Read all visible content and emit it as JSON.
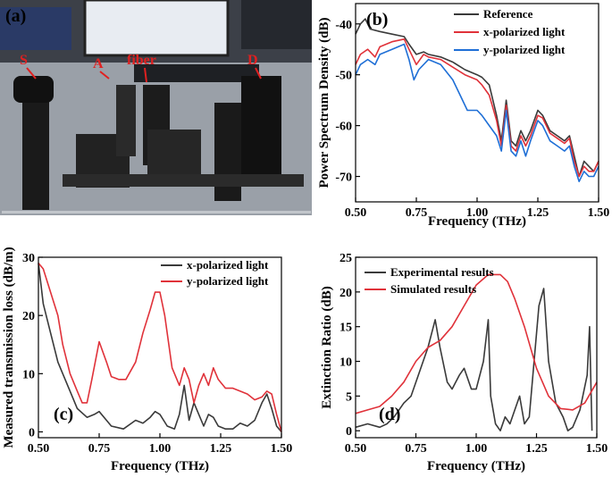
{
  "photo": {
    "panel_label": "(a)",
    "annotations": [
      "S",
      "A",
      "fiber",
      "D"
    ]
  },
  "colors": {
    "black": "#3a3a3a",
    "red": "#e0323a",
    "blue": "#1f6fd6"
  },
  "chart_data": [
    {
      "type": "line",
      "panel_label": "(b)",
      "xlabel": "Frequency (THz)",
      "ylabel": "Power Spectrum Density (dB)",
      "xlim": [
        0.5,
        1.5
      ],
      "ylim": [
        -75,
        -36
      ],
      "xticks": [
        0.5,
        0.75,
        1.0,
        1.25,
        1.5
      ],
      "xtick_labels": [
        "0.50",
        "0.75",
        "1.00",
        "1.25",
        "1.50"
      ],
      "yticks": [
        -40,
        -50,
        -60,
        -70
      ],
      "ytick_labels": [
        "-40",
        "-50",
        "-60",
        "-70"
      ],
      "series": [
        {
          "name": "Reference",
          "color": "#3a3a3a",
          "x": [
            0.5,
            0.52,
            0.54,
            0.56,
            0.6,
            0.65,
            0.7,
            0.72,
            0.75,
            0.78,
            0.8,
            0.85,
            0.9,
            0.95,
            1.0,
            1.02,
            1.05,
            1.08,
            1.1,
            1.12,
            1.14,
            1.16,
            1.18,
            1.2,
            1.22,
            1.25,
            1.27,
            1.3,
            1.33,
            1.36,
            1.38,
            1.4,
            1.42,
            1.44,
            1.46,
            1.48,
            1.5
          ],
          "y": [
            -42,
            -40,
            -39,
            -41,
            -41.5,
            -42,
            -42.5,
            -44,
            -46,
            -45.5,
            -46,
            -46.5,
            -47.5,
            -49,
            -50,
            -50.5,
            -52,
            -58,
            -63,
            -55,
            -63,
            -64,
            -61,
            -63,
            -61,
            -57,
            -58,
            -61,
            -62,
            -63,
            -62,
            -66,
            -70,
            -67,
            -68,
            -69,
            -67
          ]
        },
        {
          "name": "x-polarized light",
          "color": "#e0323a",
          "x": [
            0.5,
            0.52,
            0.55,
            0.58,
            0.6,
            0.65,
            0.7,
            0.72,
            0.75,
            0.78,
            0.8,
            0.85,
            0.9,
            0.95,
            1.0,
            1.02,
            1.05,
            1.08,
            1.1,
            1.12,
            1.14,
            1.16,
            1.18,
            1.2,
            1.22,
            1.25,
            1.27,
            1.3,
            1.33,
            1.36,
            1.38,
            1.4,
            1.42,
            1.44,
            1.46,
            1.48,
            1.5
          ],
          "y": [
            -48,
            -46,
            -45,
            -46.5,
            -44.5,
            -43.5,
            -43,
            -45,
            -48,
            -46,
            -46.5,
            -47,
            -48.5,
            -50,
            -51,
            -52,
            -54,
            -59,
            -64,
            -56,
            -64,
            -65,
            -62,
            -64,
            -62,
            -58,
            -58.5,
            -61.5,
            -62.5,
            -63.5,
            -62.5,
            -67,
            -70,
            -68,
            -69,
            -69,
            -67
          ]
        },
        {
          "name": "y-polarized light",
          "color": "#1f6fd6",
          "x": [
            0.5,
            0.52,
            0.55,
            0.58,
            0.6,
            0.65,
            0.7,
            0.72,
            0.74,
            0.76,
            0.8,
            0.85,
            0.9,
            0.93,
            0.96,
            1.0,
            1.02,
            1.05,
            1.08,
            1.1,
            1.12,
            1.14,
            1.16,
            1.18,
            1.2,
            1.22,
            1.25,
            1.27,
            1.3,
            1.33,
            1.36,
            1.38,
            1.4,
            1.42,
            1.44,
            1.46,
            1.48,
            1.5
          ],
          "y": [
            -50,
            -48,
            -47,
            -48,
            -46,
            -45,
            -44,
            -47,
            -51,
            -49,
            -47,
            -48,
            -51,
            -54,
            -57,
            -57,
            -58,
            -60,
            -62,
            -65,
            -57,
            -65,
            -66,
            -63,
            -66,
            -63,
            -59,
            -60,
            -63,
            -64,
            -65,
            -64,
            -68,
            -71,
            -69,
            -70,
            -70,
            -68
          ]
        }
      ]
    },
    {
      "type": "line",
      "panel_label": "(c)",
      "xlabel": "Frequency (THz)",
      "ylabel": "Measured transmission loss (dB/m)",
      "xlim": [
        0.5,
        1.5
      ],
      "ylim": [
        -1,
        30
      ],
      "xticks": [
        0.5,
        0.75,
        1.0,
        1.25,
        1.5
      ],
      "xtick_labels": [
        "0.50",
        "0.75",
        "1.00",
        "1.25",
        "1.50"
      ],
      "yticks": [
        0,
        10,
        20,
        30
      ],
      "ytick_labels": [
        "0",
        "10",
        "20",
        "30"
      ],
      "series": [
        {
          "name": "x-polarized light",
          "color": "#3a3a3a",
          "x": [
            0.5,
            0.52,
            0.55,
            0.58,
            0.6,
            0.63,
            0.66,
            0.7,
            0.73,
            0.75,
            0.78,
            0.8,
            0.85,
            0.9,
            0.93,
            0.96,
            0.98,
            1.0,
            1.03,
            1.06,
            1.08,
            1.1,
            1.12,
            1.14,
            1.16,
            1.18,
            1.2,
            1.22,
            1.24,
            1.27,
            1.3,
            1.33,
            1.36,
            1.39,
            1.42,
            1.44,
            1.46,
            1.48,
            1.5
          ],
          "y": [
            29,
            22,
            17,
            12,
            10,
            7,
            4,
            2.5,
            3,
            3.5,
            2,
            1,
            0.5,
            2,
            1.5,
            2.5,
            3.5,
            3,
            1,
            0.5,
            3,
            8,
            2,
            5,
            3,
            1,
            3,
            2.5,
            1,
            0.5,
            0.5,
            1.5,
            1,
            2,
            5,
            6.5,
            4,
            1,
            0
          ]
        },
        {
          "name": "y-polarized light",
          "color": "#e0323a",
          "x": [
            0.5,
            0.52,
            0.55,
            0.58,
            0.6,
            0.63,
            0.66,
            0.68,
            0.7,
            0.72,
            0.75,
            0.78,
            0.8,
            0.83,
            0.86,
            0.9,
            0.93,
            0.96,
            0.98,
            1.0,
            1.02,
            1.05,
            1.08,
            1.1,
            1.12,
            1.14,
            1.16,
            1.18,
            1.2,
            1.22,
            1.24,
            1.27,
            1.3,
            1.33,
            1.36,
            1.39,
            1.42,
            1.44,
            1.46,
            1.48,
            1.5
          ],
          "y": [
            29,
            28,
            24,
            20,
            15,
            10,
            7,
            5,
            5,
            9,
            15.5,
            12,
            9.5,
            9,
            9,
            12,
            17,
            21,
            24,
            24,
            20,
            11,
            8,
            11,
            9,
            5,
            8,
            10,
            8,
            11,
            9,
            7.5,
            7.5,
            7,
            6.5,
            5.5,
            6,
            7,
            6.5,
            3,
            0
          ]
        }
      ]
    },
    {
      "type": "line",
      "panel_label": "(d)",
      "xlabel": "Frequency (THz)",
      "ylabel": "Extinction Ratio (dB)",
      "xlim": [
        0.5,
        1.5
      ],
      "ylim": [
        -1,
        25
      ],
      "xticks": [
        0.5,
        0.75,
        1.0,
        1.25,
        1.5
      ],
      "xtick_labels": [
        "0.50",
        "0.75",
        "1.00",
        "1.25",
        "1.50"
      ],
      "yticks": [
        0,
        5,
        10,
        15,
        20,
        25
      ],
      "ytick_labels": [
        "0",
        "5",
        "10",
        "15",
        "20",
        "25"
      ],
      "series": [
        {
          "name": "Experimental results",
          "color": "#3a3a3a",
          "x": [
            0.5,
            0.55,
            0.6,
            0.63,
            0.66,
            0.7,
            0.73,
            0.76,
            0.8,
            0.83,
            0.85,
            0.88,
            0.9,
            0.93,
            0.95,
            0.98,
            1.0,
            1.03,
            1.05,
            1.06,
            1.08,
            1.1,
            1.12,
            1.14,
            1.16,
            1.18,
            1.2,
            1.22,
            1.24,
            1.26,
            1.28,
            1.3,
            1.33,
            1.36,
            1.38,
            1.4,
            1.43,
            1.46,
            1.47,
            1.48
          ],
          "y": [
            0.5,
            1,
            0.5,
            1,
            2,
            4,
            5,
            8,
            12,
            16,
            12,
            7,
            6,
            8,
            9,
            6,
            6,
            10,
            16,
            5,
            1,
            0,
            2,
            1,
            3,
            5,
            1,
            2,
            10,
            18,
            20.5,
            10,
            4,
            2,
            0,
            0.5,
            3,
            8,
            15,
            0
          ]
        },
        {
          "name": "Simulated results",
          "color": "#e0323a",
          "x": [
            0.5,
            0.55,
            0.6,
            0.65,
            0.7,
            0.75,
            0.8,
            0.85,
            0.9,
            0.95,
            1.0,
            1.05,
            1.1,
            1.13,
            1.16,
            1.2,
            1.25,
            1.3,
            1.35,
            1.4,
            1.45,
            1.5
          ],
          "y": [
            2.5,
            3,
            3.5,
            5,
            7,
            10,
            12,
            13,
            15,
            18,
            21,
            22.5,
            22.5,
            21.5,
            19,
            15,
            9,
            5,
            3.2,
            3,
            4,
            7
          ]
        }
      ]
    }
  ]
}
